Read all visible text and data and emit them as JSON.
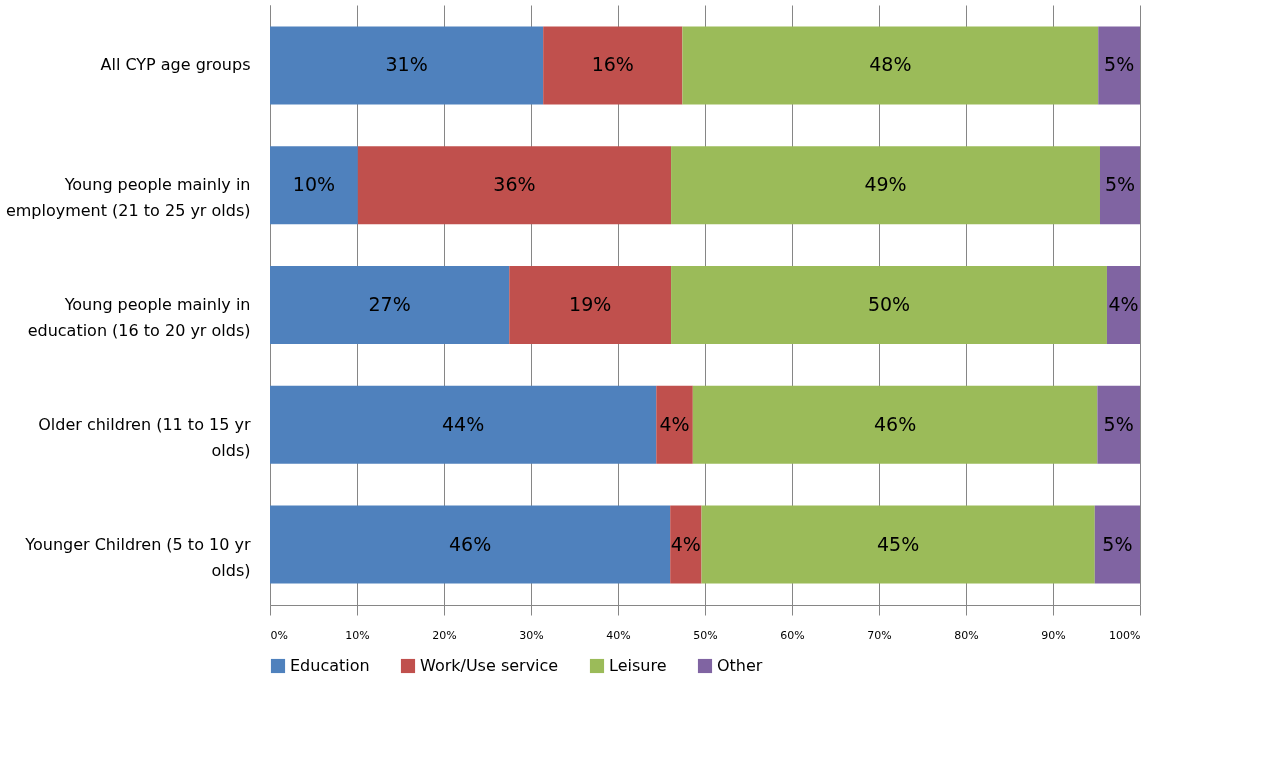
{
  "chart_data": {
    "type": "bar",
    "orientation": "horizontal",
    "stacked": true,
    "categories": [
      "All CYP age groups",
      "Young people mainly in employment (21 to 25 yr olds)",
      "Young people mainly in education (16 to 20 yr olds)",
      "Older children (11 to 15 yr olds)",
      "Younger Children (5 to 10 yr olds)"
    ],
    "series": [
      {
        "name": "Education",
        "color": "#4f81bd",
        "values": [
          31.4,
          10.1,
          27.5,
          44.4,
          46.0
        ],
        "value_labels": [
          "31%",
          "10%",
          "27%",
          "44%",
          "46%"
        ]
      },
      {
        "name": "Work/Use service",
        "color": "#c0504d",
        "values": [
          16.0,
          36.0,
          18.6,
          4.2,
          3.6
        ],
        "value_labels": [
          "16%",
          "36%",
          "19%",
          "4%",
          "4%"
        ]
      },
      {
        "name": "Leisure",
        "color": "#9bbb59",
        "values": [
          47.8,
          49.3,
          50.1,
          46.5,
          45.2
        ],
        "value_labels": [
          "48%",
          "49%",
          "50%",
          "46%",
          "45%"
        ]
      },
      {
        "name": "Other",
        "color": "#8064a2",
        "values": [
          4.8,
          4.6,
          3.8,
          4.9,
          5.2
        ],
        "value_labels": [
          "5%",
          "5%",
          "4%",
          "5%",
          "5%"
        ]
      }
    ],
    "xlim": [
      0,
      100
    ],
    "xticks": [
      {
        "value": 0,
        "label": "0%"
      },
      {
        "value": 10,
        "label": "10%"
      },
      {
        "value": 20,
        "label": "20%"
      },
      {
        "value": 30,
        "label": "30%"
      },
      {
        "value": 40,
        "label": "40%"
      },
      {
        "value": 50,
        "label": "50%"
      },
      {
        "value": 60,
        "label": "60%"
      },
      {
        "value": 70,
        "label": "70%"
      },
      {
        "value": 80,
        "label": "80%"
      },
      {
        "value": 90,
        "label": "90%"
      },
      {
        "value": 100,
        "label": "100%"
      }
    ],
    "grid": "x",
    "legend": "bottom"
  }
}
